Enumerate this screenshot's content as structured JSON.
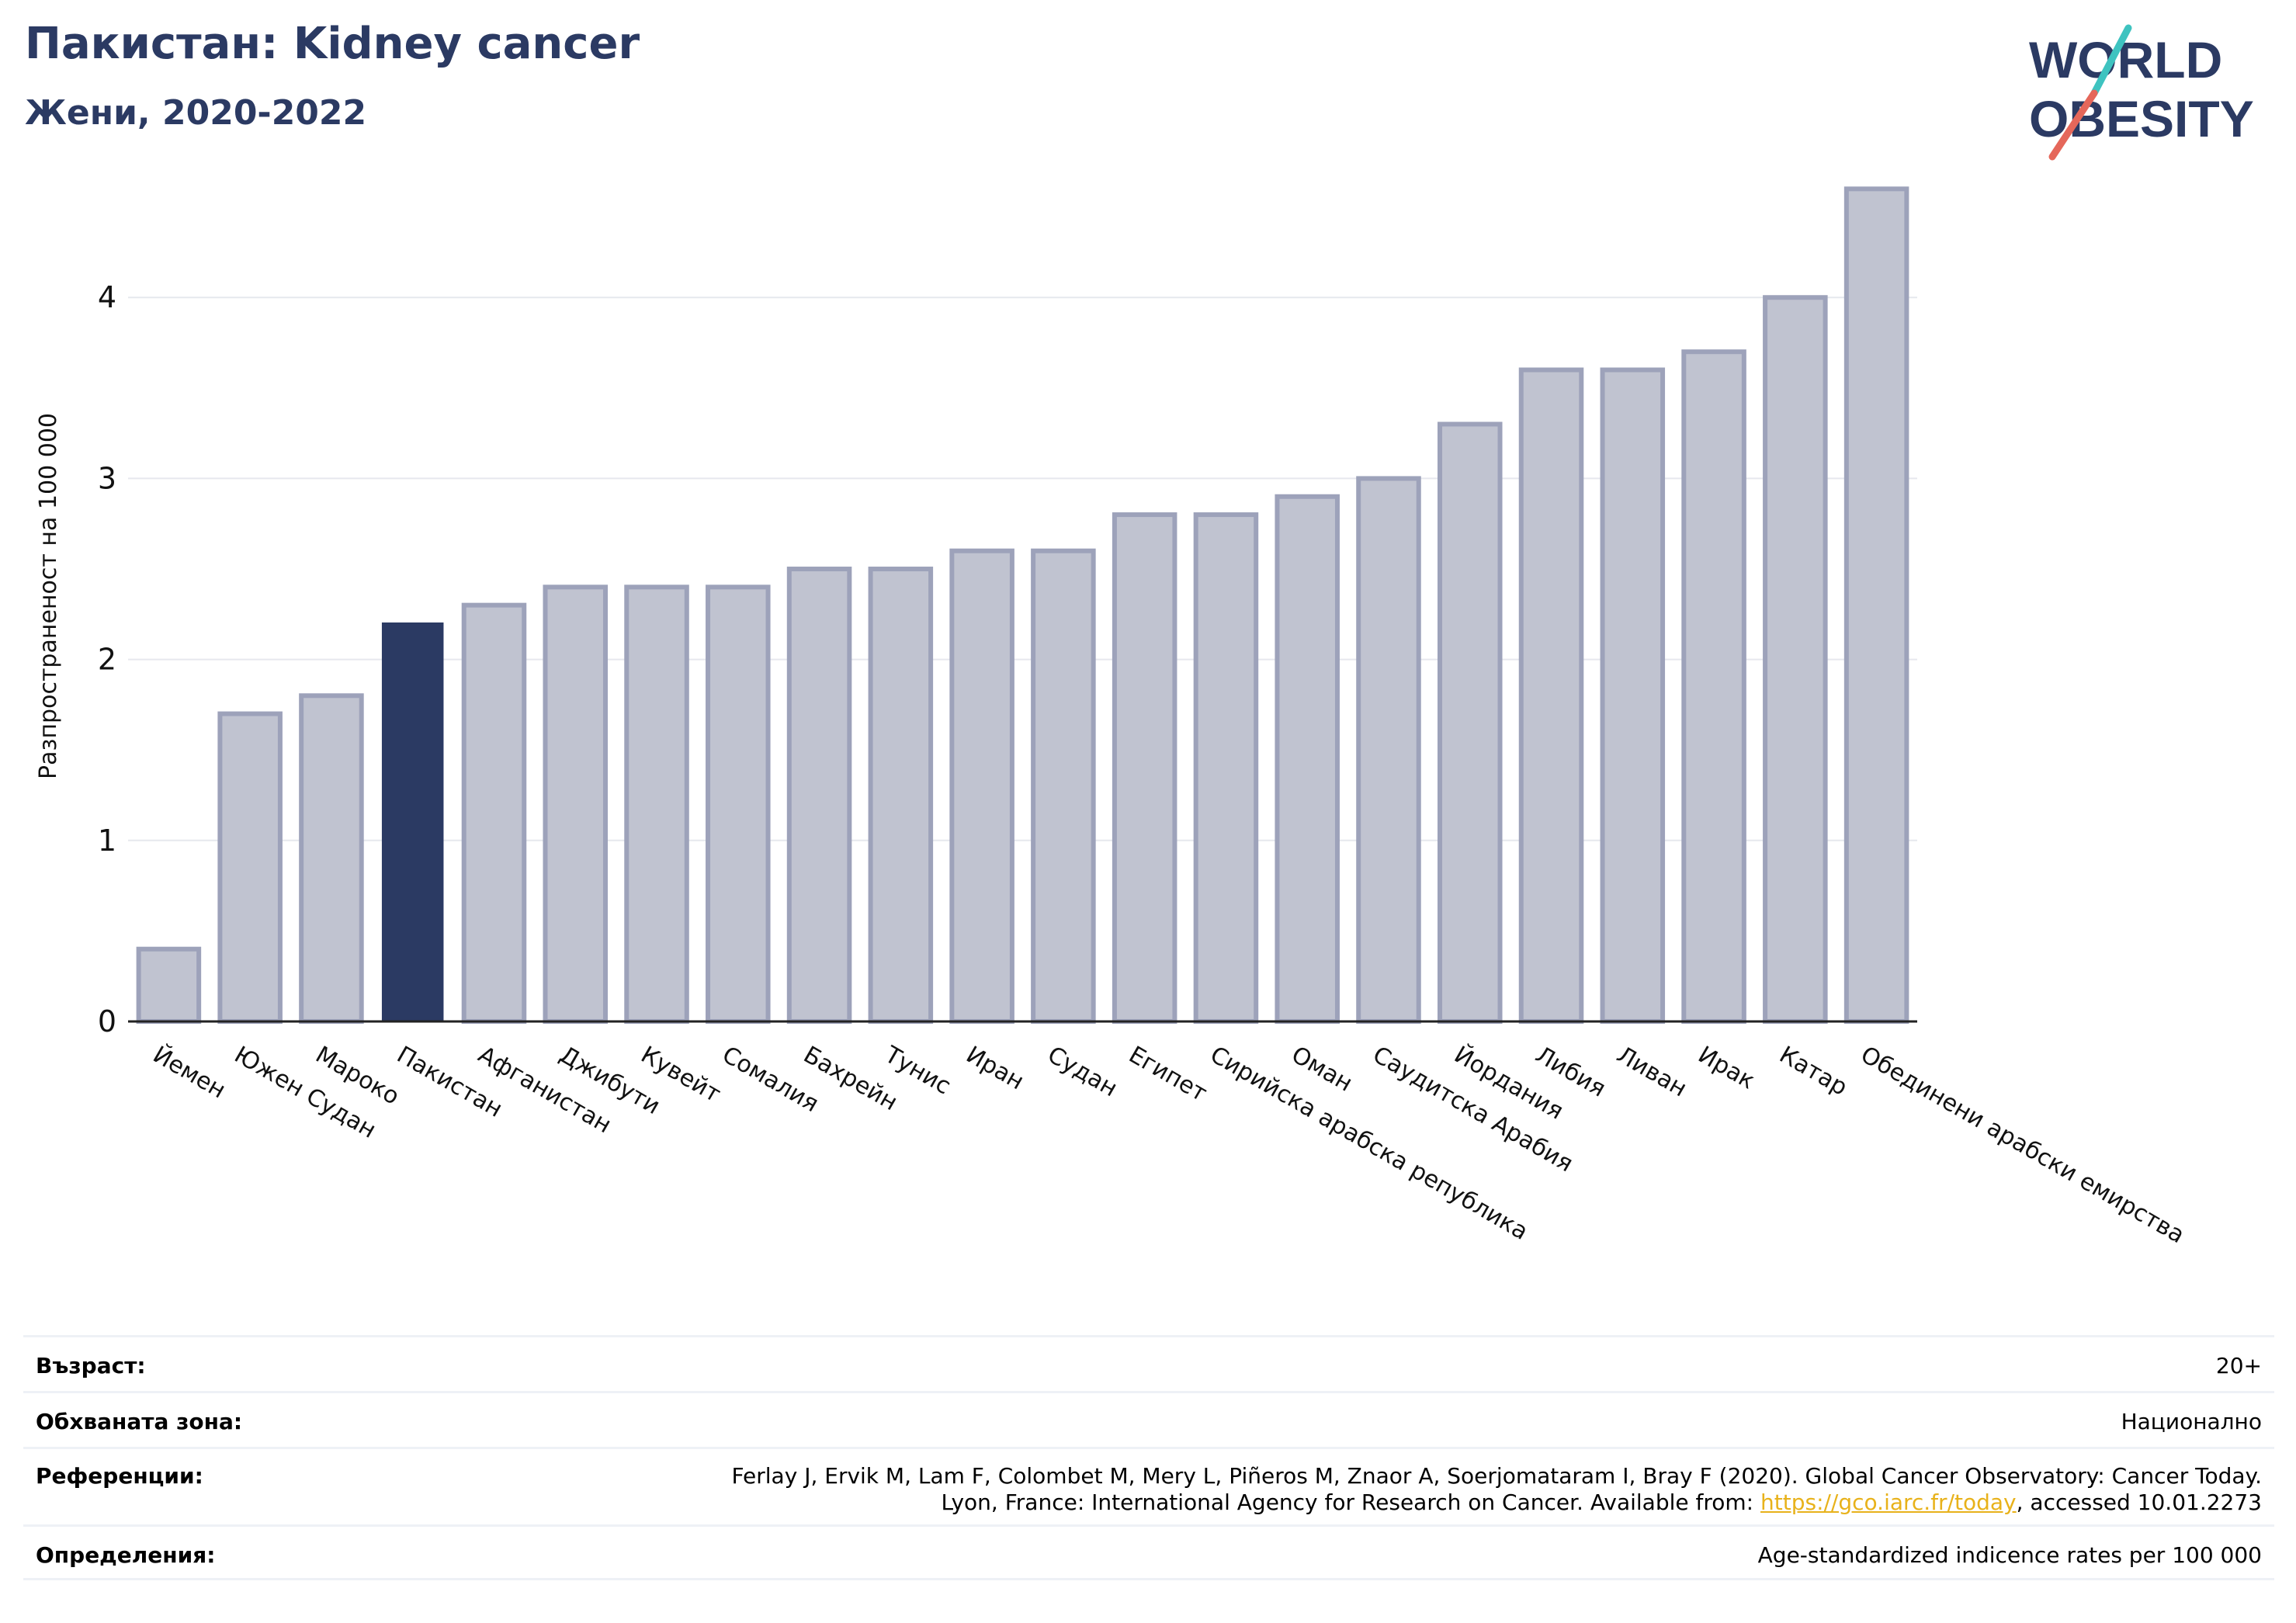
{
  "header": {
    "title": "Пакистан: Kidney cancer",
    "subtitle": "Жени, 2020-2022"
  },
  "logo": {
    "line1": "WORLD",
    "line2": "OBESITY",
    "slash_colors": [
      "#3ec3c0",
      "#e5675a"
    ],
    "text_color": "#2b3a63"
  },
  "chart_data": {
    "type": "bar",
    "categories": [
      "Йемен",
      "Южен Судан",
      "Мароко",
      "Пакистан",
      "Афганистан",
      "Джибути",
      "Кувейт",
      "Сомалия",
      "Бахрейн",
      "Тунис",
      "Иран",
      "Судан",
      "Египет",
      "Сирийска арабска република",
      "Оман",
      "Саудитска Арабия",
      "Йордания",
      "Либия",
      "Ливан",
      "Ирак",
      "Катар",
      "Обединени арабски емирства"
    ],
    "values": [
      0.4,
      1.7,
      1.8,
      2.2,
      2.3,
      2.4,
      2.4,
      2.4,
      2.5,
      2.5,
      2.6,
      2.6,
      2.8,
      2.8,
      2.9,
      3.0,
      3.3,
      3.6,
      3.6,
      3.7,
      4.0,
      4.6
    ],
    "highlight": "Пакистан",
    "ylabel": "Разпространеност  на 100 000",
    "ylim": [
      0,
      4.7
    ],
    "yticks": [
      0,
      1,
      2,
      3,
      4
    ],
    "grid": true,
    "colors": {
      "bar": "#c0c3d0",
      "bar_edge": "#9da2ba",
      "highlight": "#2b3a63"
    }
  },
  "info": {
    "age_label": "Възраст:",
    "age_value": "20+",
    "coverage_label": "Обхваната зона:",
    "coverage_value": "Национално",
    "ref_label": "Референции:",
    "ref_line1": "Ferlay J, Ervik M, Lam F, Colombet M, Mery L, Piñeros M, Znaor A, Soerjomataram I, Bray F (2020). Global Cancer Observatory: Cancer Today.",
    "ref_line2_pre": "Lyon, France: International Agency for Research on Cancer. Available from: ",
    "ref_link": "https://gco.iarc.fr/today",
    "ref_line2_post": ", accessed 10.01.2273",
    "def_label": "Определения:",
    "def_value": "Age-standardized indicence rates per 100 000"
  }
}
